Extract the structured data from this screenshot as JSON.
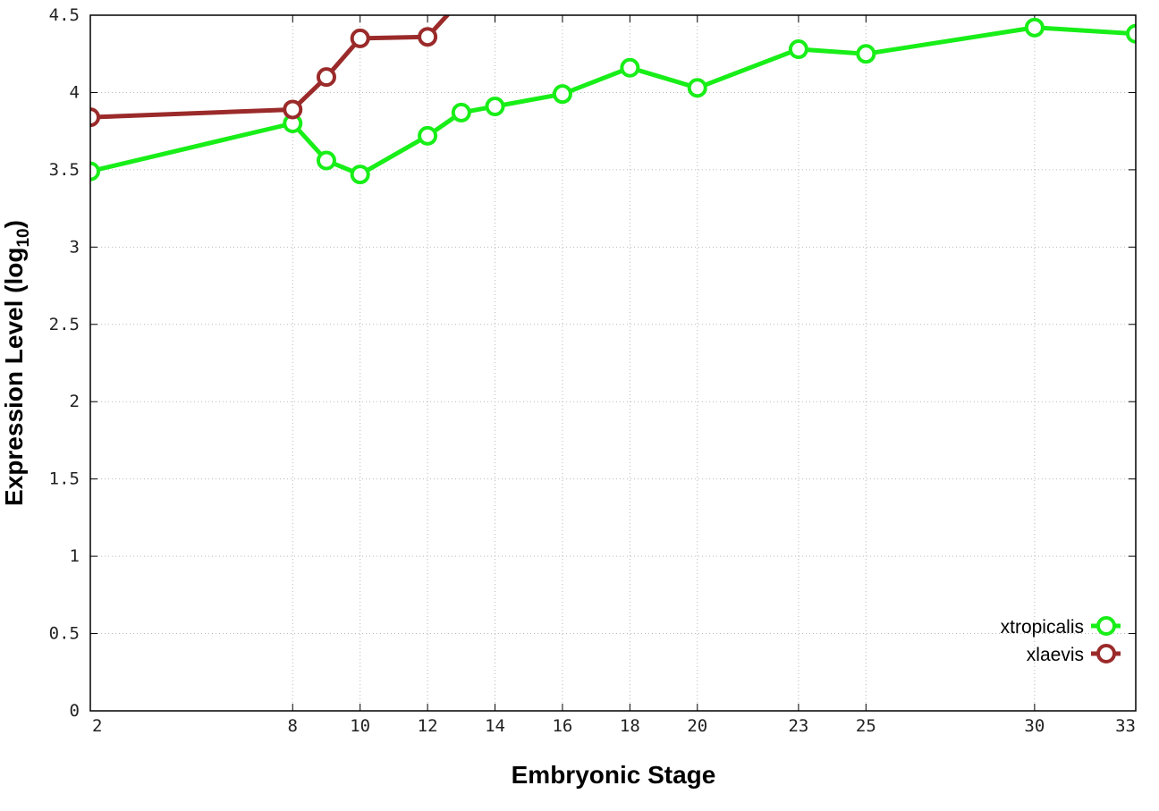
{
  "chart_data": {
    "type": "line",
    "xlabel": "Embryonic Stage",
    "ylabel": "Expression Level (log",
    "ylabel_sub": "10",
    "ylabel_end": ")",
    "ylim": [
      0,
      4.5
    ],
    "xlim": [
      2,
      33
    ],
    "x_ticks": [
      2,
      8,
      10,
      12,
      14,
      16,
      18,
      20,
      23,
      25,
      30,
      33
    ],
    "x_tick_labels": [
      "2",
      "8",
      "10",
      "12",
      "14",
      "16",
      "18",
      "20",
      "23",
      "25",
      "30",
      "33"
    ],
    "y_ticks": [
      0,
      0.5,
      1,
      1.5,
      2,
      2.5,
      3,
      3.5,
      4,
      4.5
    ],
    "y_tick_labels": [
      "0",
      "0.5",
      "1",
      "1.5",
      "2",
      "2.5",
      "3",
      "3.5",
      "4",
      "4.5"
    ],
    "grid": true,
    "legend_position": "bottom-right",
    "series": [
      {
        "name": "xtropicalis",
        "color": "#18ee18",
        "x": [
          2,
          8,
          9,
          10,
          12,
          13,
          14,
          16,
          18,
          20,
          23,
          25,
          30,
          33
        ],
        "values": [
          3.49,
          3.8,
          3.56,
          3.47,
          3.72,
          3.87,
          3.91,
          3.99,
          4.16,
          4.03,
          4.28,
          4.25,
          4.42,
          4.38
        ]
      },
      {
        "name": "xlaevis",
        "color": "#9b2a2a",
        "x": [
          2,
          8,
          9,
          10,
          12,
          13
        ],
        "values": [
          3.84,
          3.89,
          4.1,
          4.35,
          4.36,
          4.6
        ]
      }
    ]
  }
}
